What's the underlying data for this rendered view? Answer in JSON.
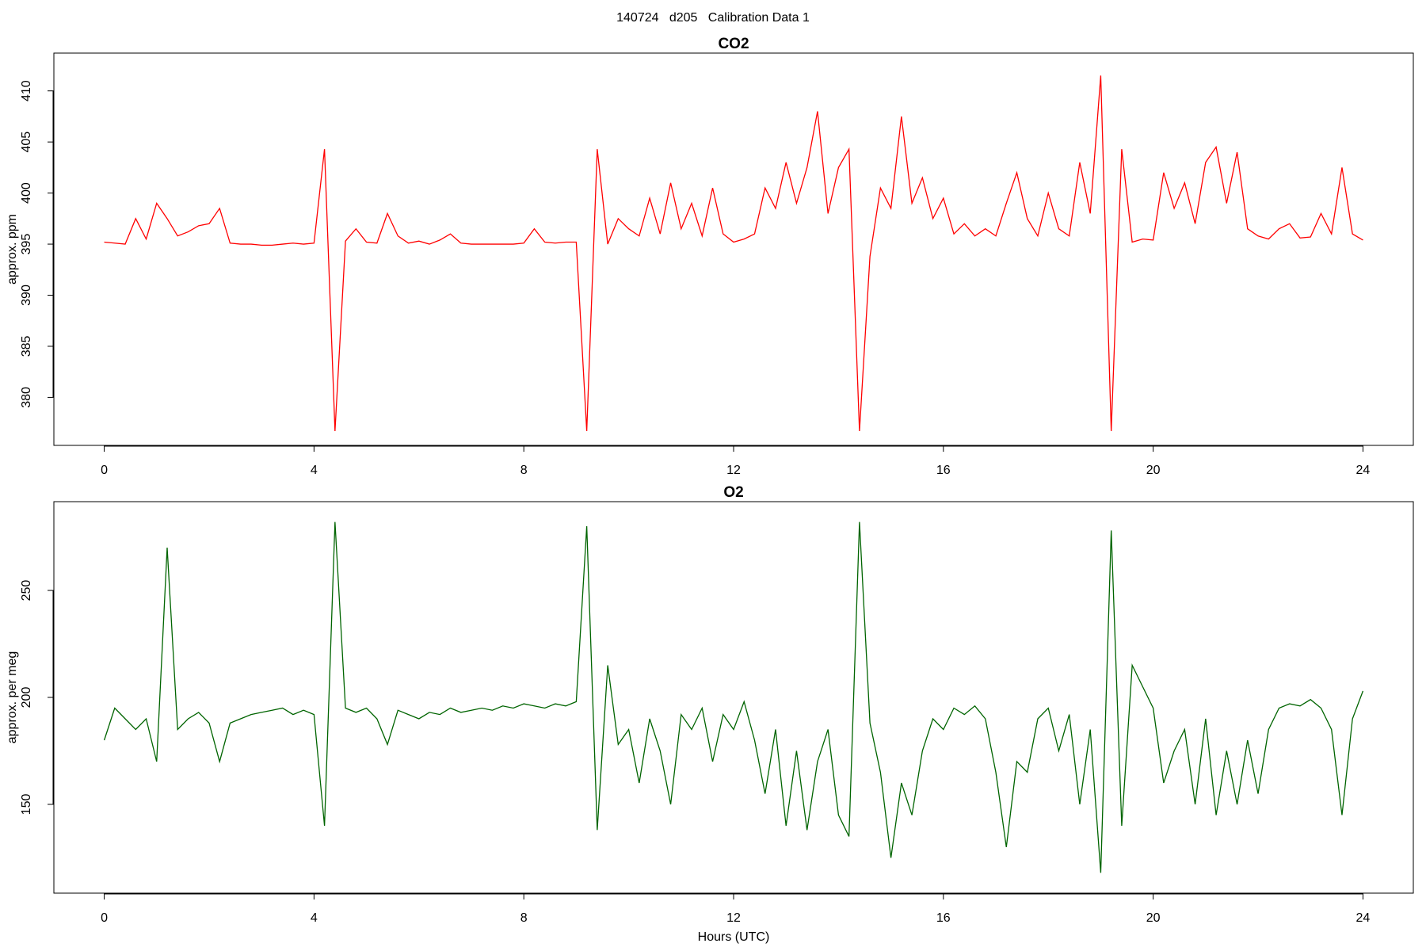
{
  "header": {
    "title": "140724   d205   Calibration Data 1"
  },
  "chart_data": [
    {
      "type": "line",
      "title": "CO2",
      "ylabel": "approx. ppm",
      "x": [
        0,
        0.2,
        0.4,
        0.6,
        0.8,
        1,
        1.2,
        1.4,
        1.6,
        1.8,
        2,
        2.2,
        2.4,
        2.6,
        2.8,
        3,
        3.2,
        3.4,
        3.6,
        3.8,
        4,
        4.2,
        4.4,
        4.6,
        4.8,
        5,
        5.2,
        5.4,
        5.6,
        5.8,
        6,
        6.2,
        6.4,
        6.6,
        6.8,
        7,
        7.2,
        7.4,
        7.6,
        7.8,
        8,
        8.2,
        8.4,
        8.6,
        8.8,
        9,
        9.2,
        9.4,
        9.6,
        9.8,
        10,
        10.2,
        10.4,
        10.6,
        10.8,
        11,
        11.2,
        11.4,
        11.6,
        11.8,
        12,
        12.2,
        12.4,
        12.6,
        12.8,
        13,
        13.2,
        13.4,
        13.6,
        13.8,
        14,
        14.2,
        14.4,
        14.6,
        14.8,
        15,
        15.2,
        15.4,
        15.6,
        15.8,
        16,
        16.2,
        16.4,
        16.6,
        16.8,
        17,
        17.2,
        17.4,
        17.6,
        17.8,
        18,
        18.2,
        18.4,
        18.6,
        18.8,
        19,
        19.2,
        19.4,
        19.6,
        19.8,
        20,
        20.2,
        20.4,
        20.6,
        20.8,
        21,
        21.2,
        21.4,
        21.6,
        21.8,
        22,
        22.2,
        22.4,
        22.6,
        22.8,
        23,
        23.2,
        23.4,
        23.6,
        23.8,
        24
      ],
      "series": [
        {
          "color": "#ff0000",
          "values": [
            395.2,
            395.1,
            395.0,
            397.5,
            395.5,
            399.0,
            397.5,
            395.8,
            396.2,
            396.8,
            397.0,
            398.5,
            395.1,
            395.0,
            395.0,
            394.9,
            394.9,
            395.0,
            395.1,
            395.0,
            395.1,
            404.3,
            376.7,
            395.3,
            396.5,
            395.2,
            395.1,
            398.0,
            395.8,
            395.1,
            395.3,
            395.0,
            395.4,
            396.0,
            395.1,
            395.0,
            395.0,
            395.0,
            395.0,
            395.0,
            395.1,
            396.5,
            395.2,
            395.1,
            395.2,
            395.2,
            376.7,
            404.3,
            395.0,
            397.5,
            396.5,
            395.8,
            399.5,
            396.0,
            401.0,
            396.5,
            399.0,
            395.8,
            400.5,
            396.0,
            395.2,
            395.5,
            396.0,
            400.5,
            398.5,
            403.0,
            399.0,
            402.5,
            408.0,
            398.0,
            402.5,
            404.3,
            376.7,
            393.8,
            400.5,
            398.5,
            407.5,
            399.0,
            401.5,
            397.5,
            399.5,
            396.0,
            397.0,
            395.8,
            396.5,
            395.8,
            399.0,
            402.0,
            397.5,
            395.8,
            400.0,
            396.5,
            395.8,
            403.0,
            398.0,
            411.5,
            376.7,
            404.3,
            395.2,
            395.5,
            395.4,
            402.0,
            398.5,
            401.0,
            397.0,
            403.0,
            404.5,
            399.0,
            404.0,
            396.5,
            395.8,
            395.5,
            396.5,
            397.0,
            395.6,
            395.7,
            398.0,
            396.0,
            402.5,
            396.0,
            395.4
          ]
        }
      ],
      "xlim": [
        -0.96,
        24.96
      ],
      "ylim": [
        375.3,
        413.7
      ],
      "xticks": [
        0,
        4,
        8,
        12,
        16,
        20,
        24
      ],
      "yticks": [
        380,
        385,
        390,
        395,
        400,
        405,
        410
      ]
    },
    {
      "type": "line",
      "title": "O2",
      "ylabel": "approx. per meg",
      "xlabel": "Hours (UTC)",
      "x": [
        0,
        0.2,
        0.4,
        0.6,
        0.8,
        1,
        1.2,
        1.4,
        1.6,
        1.8,
        2,
        2.2,
        2.4,
        2.6,
        2.8,
        3,
        3.2,
        3.4,
        3.6,
        3.8,
        4,
        4.2,
        4.4,
        4.6,
        4.8,
        5,
        5.2,
        5.4,
        5.6,
        5.8,
        6,
        6.2,
        6.4,
        6.6,
        6.8,
        7,
        7.2,
        7.4,
        7.6,
        7.8,
        8,
        8.2,
        8.4,
        8.6,
        8.8,
        9,
        9.2,
        9.4,
        9.6,
        9.8,
        10,
        10.2,
        10.4,
        10.6,
        10.8,
        11,
        11.2,
        11.4,
        11.6,
        11.8,
        12,
        12.2,
        12.4,
        12.6,
        12.8,
        13,
        13.2,
        13.4,
        13.6,
        13.8,
        14,
        14.2,
        14.4,
        14.6,
        14.8,
        15,
        15.2,
        15.4,
        15.6,
        15.8,
        16,
        16.2,
        16.4,
        16.6,
        16.8,
        17,
        17.2,
        17.4,
        17.6,
        17.8,
        18,
        18.2,
        18.4,
        18.6,
        18.8,
        19,
        19.2,
        19.4,
        19.6,
        19.8,
        20,
        20.2,
        20.4,
        20.6,
        20.8,
        21,
        21.2,
        21.4,
        21.6,
        21.8,
        22,
        22.2,
        22.4,
        22.6,
        22.8,
        23,
        23.2,
        23.4,
        23.6,
        23.8,
        24
      ],
      "series": [
        {
          "color": "#006400",
          "values": [
            180,
            195,
            190,
            185,
            190,
            170,
            270,
            185,
            190,
            193,
            188,
            170,
            188,
            190,
            192,
            193,
            194,
            195,
            192,
            194,
            192,
            140,
            282,
            195,
            193,
            195,
            190,
            178,
            194,
            192,
            190,
            193,
            192,
            195,
            193,
            194,
            195,
            194,
            196,
            195,
            197,
            196,
            195,
            197,
            196,
            198,
            280,
            138,
            215,
            178,
            185,
            160,
            190,
            175,
            150,
            192,
            185,
            195,
            170,
            192,
            185,
            198,
            180,
            155,
            185,
            140,
            175,
            138,
            170,
            185,
            145,
            135,
            282,
            188,
            165,
            125,
            160,
            145,
            175,
            190,
            185,
            195,
            192,
            196,
            190,
            165,
            130,
            170,
            165,
            190,
            195,
            175,
            192,
            150,
            185,
            118,
            278,
            140,
            215,
            205,
            195,
            160,
            175,
            185,
            150,
            190,
            145,
            175,
            150,
            180,
            155,
            185,
            195,
            197,
            196,
            199,
            195,
            185,
            145,
            190,
            203
          ]
        }
      ],
      "xlim": [
        -0.96,
        24.96
      ],
      "ylim": [
        108.5,
        291.5
      ],
      "xticks": [
        0,
        4,
        8,
        12,
        16,
        20,
        24
      ],
      "yticks": [
        150,
        200,
        250
      ]
    }
  ]
}
